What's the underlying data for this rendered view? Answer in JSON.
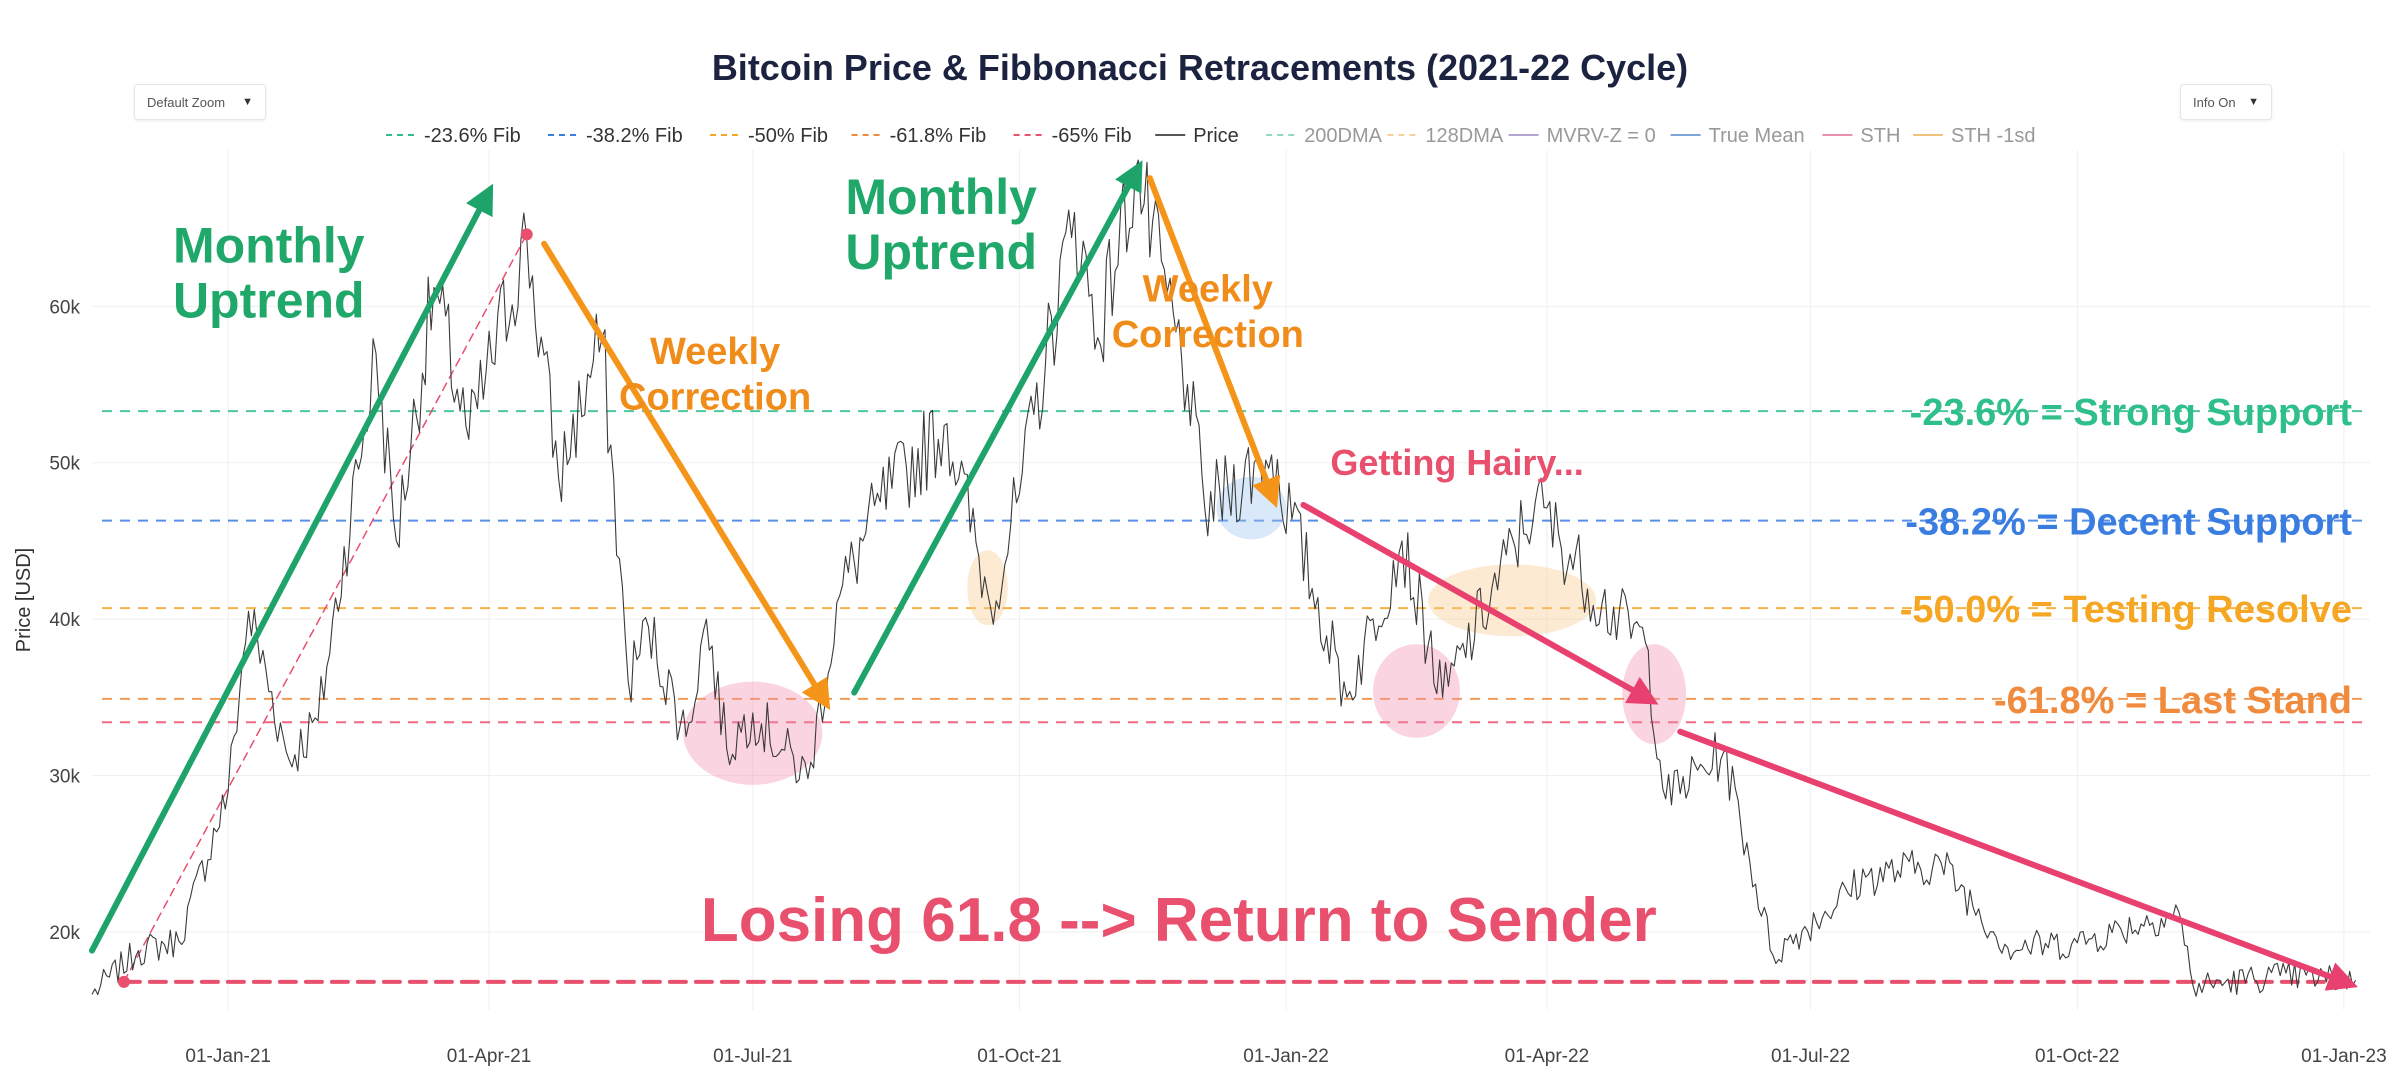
{
  "controls": {
    "zoom_label": "Default Zoom",
    "info_label": "Info On",
    "caret": "▼"
  },
  "chart_data": {
    "type": "line",
    "title": "Bitcoin Price & Fibbonacci Retracements (2021-22 Cycle)",
    "ylabel": "Price [USD]",
    "xlabel": "",
    "ylim": [
      15000,
      70000
    ],
    "xlim": [
      "2020-11-15",
      "2023-01-10"
    ],
    "x_ticks": [
      {
        "date": "2021-01-01",
        "label": "01-Jan-21"
      },
      {
        "date": "2021-04-01",
        "label": "01-Apr-21"
      },
      {
        "date": "2021-07-01",
        "label": "01-Jul-21"
      },
      {
        "date": "2021-10-01",
        "label": "01-Oct-21"
      },
      {
        "date": "2022-01-01",
        "label": "01-Jan-22"
      },
      {
        "date": "2022-04-01",
        "label": "01-Apr-22"
      },
      {
        "date": "2022-07-01",
        "label": "01-Jul-22"
      },
      {
        "date": "2022-10-01",
        "label": "01-Oct-22"
      },
      {
        "date": "2023-01-01",
        "label": "01-Jan-23"
      }
    ],
    "y_ticks": [
      {
        "value": 20000,
        "label": "20k"
      },
      {
        "value": 30000,
        "label": "30k"
      },
      {
        "value": 40000,
        "label": "40k"
      },
      {
        "value": 50000,
        "label": "50k"
      },
      {
        "value": 60000,
        "label": "60k"
      }
    ],
    "legend": [
      {
        "name": "-23.6% Fib",
        "color": "#2fbf8a",
        "dash": true
      },
      {
        "name": "-38.2% Fib",
        "color": "#3a7de0",
        "dash": true
      },
      {
        "name": "-50% Fib",
        "color": "#f5a623",
        "dash": true
      },
      {
        "name": "-61.8% Fib",
        "color": "#f08a3c",
        "dash": true
      },
      {
        "name": "-65% Fib",
        "color": "#e8506e",
        "dash": true
      },
      {
        "name": "Price",
        "color": "#555555",
        "dash": false
      },
      {
        "name": "200DMA",
        "color": "#8fd9c4",
        "dash": true
      },
      {
        "name": "128DMA",
        "color": "#f6cf9a",
        "dash": true
      },
      {
        "name": "MVRV-Z = 0",
        "color": "#b3a5cf",
        "dash": false
      },
      {
        "name": "True Mean",
        "color": "#7fa6d8",
        "dash": false
      },
      {
        "name": "STH",
        "color": "#ea8fb0",
        "dash": false
      },
      {
        "name": "STH -1sd",
        "color": "#f2c27a",
        "dash": false
      }
    ],
    "fib_levels": [
      {
        "name": "-23.6% Fib",
        "value": 53300,
        "color": "#2fbf8a",
        "label": "-23.6% = Strong Support"
      },
      {
        "name": "-38.2% Fib",
        "value": 46300,
        "color": "#3a7de0",
        "label": "-38.2% = Decent Support"
      },
      {
        "name": "-50% Fib",
        "value": 40700,
        "color": "#f5a623",
        "label": "-50.0% = Testing Resolve"
      },
      {
        "name": "-61.8% Fib",
        "value": 34900,
        "color": "#f08a3c",
        "label": "-61.8% = Last Stand"
      },
      {
        "name": "-65% Fib",
        "value": 33400,
        "color": "#e8506e",
        "label": ""
      }
    ],
    "price_series": {
      "name": "Price",
      "points": [
        [
          "2020-11-15",
          16000
        ],
        [
          "2020-12-01",
          18800
        ],
        [
          "2020-12-15",
          19400
        ],
        [
          "2021-01-01",
          29000
        ],
        [
          "2021-01-08",
          40500
        ],
        [
          "2021-01-22",
          31000
        ],
        [
          "2021-02-01",
          33500
        ],
        [
          "2021-02-21",
          57000
        ],
        [
          "2021-02-28",
          45000
        ],
        [
          "2021-03-13",
          61200
        ],
        [
          "2021-03-25",
          51500
        ],
        [
          "2021-04-14",
          64400
        ],
        [
          "2021-04-25",
          49000
        ],
        [
          "2021-05-10",
          58000
        ],
        [
          "2021-05-19",
          36000
        ],
        [
          "2021-05-26",
          39500
        ],
        [
          "2021-06-08",
          32500
        ],
        [
          "2021-06-15",
          40000
        ],
        [
          "2021-06-22",
          31700
        ],
        [
          "2021-07-01",
          34000
        ],
        [
          "2021-07-20",
          29800
        ],
        [
          "2021-07-31",
          41500
        ],
        [
          "2021-08-14",
          47500
        ],
        [
          "2021-09-06",
          52500
        ],
        [
          "2021-09-21",
          40800
        ],
        [
          "2021-10-01",
          48000
        ],
        [
          "2021-10-20",
          66000
        ],
        [
          "2021-10-28",
          58000
        ],
        [
          "2021-11-10",
          68800
        ],
        [
          "2021-11-28",
          55000
        ],
        [
          "2021-12-04",
          47000
        ],
        [
          "2021-12-27",
          50500
        ],
        [
          "2022-01-22",
          35000
        ],
        [
          "2022-02-10",
          45000
        ],
        [
          "2022-02-24",
          35000
        ],
        [
          "2022-03-28",
          47500
        ],
        [
          "2022-04-20",
          41000
        ],
        [
          "2022-05-05",
          38500
        ],
        [
          "2022-05-12",
          28500
        ],
        [
          "2022-06-01",
          31500
        ],
        [
          "2022-06-18",
          18500
        ],
        [
          "2022-07-20",
          23500
        ],
        [
          "2022-08-15",
          24400
        ],
        [
          "2022-09-07",
          19000
        ],
        [
          "2022-10-01",
          19300
        ],
        [
          "2022-11-05",
          21300
        ],
        [
          "2022-11-10",
          16500
        ],
        [
          "2022-12-10",
          17200
        ],
        [
          "2023-01-05",
          16900
        ]
      ]
    },
    "markers": [
      {
        "date": "2020-11-26",
        "value": 16800,
        "color": "#e8506e"
      },
      {
        "date": "2021-04-14",
        "value": 64600,
        "color": "#e8506e"
      }
    ],
    "annotations": [
      {
        "text": "Monthly",
        "color": "#20a86a",
        "size": 50,
        "anchor": "middle",
        "date": "2021-01-15",
        "value": 62800
      },
      {
        "text": "Uptrend",
        "color": "#20a86a",
        "size": 50,
        "anchor": "middle",
        "date": "2021-01-15",
        "value": 59300
      },
      {
        "text": "Monthly",
        "color": "#20a86a",
        "size": 50,
        "anchor": "middle",
        "date": "2021-09-04",
        "value": 65900
      },
      {
        "text": "Uptrend",
        "color": "#20a86a",
        "size": 50,
        "anchor": "middle",
        "date": "2021-09-04",
        "value": 62400
      },
      {
        "text": "Weekly",
        "color": "#f08c1a",
        "size": 38,
        "anchor": "middle",
        "date": "2021-06-18",
        "value": 56300
      },
      {
        "text": "Correction",
        "color": "#f08c1a",
        "size": 38,
        "anchor": "middle",
        "date": "2021-06-18",
        "value": 53400
      },
      {
        "text": "Weekly",
        "color": "#f08c1a",
        "size": 38,
        "anchor": "middle",
        "date": "2021-12-05",
        "value": 60300
      },
      {
        "text": "Correction",
        "color": "#f08c1a",
        "size": 38,
        "anchor": "middle",
        "date": "2021-12-05",
        "value": 57400
      },
      {
        "text": "Getting Hairy...",
        "color": "#e8506e",
        "size": 36,
        "anchor": "middle",
        "date": "2022-03-01",
        "value": 49200
      },
      {
        "text": "Losing 61.8 --> Return to Sender",
        "color": "#e8506e",
        "size": 62,
        "anchor": "middle",
        "date": "2021-11-25",
        "value": 19400
      }
    ],
    "trend_arrows": [
      {
        "color": "#1ea36a",
        "from": [
          "2020-11-15",
          18800
        ],
        "to": [
          "2021-03-31",
          67000
        ]
      },
      {
        "color": "#1ea36a",
        "from": [
          "2021-08-05",
          35300
        ],
        "to": [
          "2021-11-10",
          68500
        ]
      },
      {
        "color": "#f49418",
        "from": [
          "2021-04-20",
          64000
        ],
        "to": [
          "2021-07-25",
          35000
        ]
      },
      {
        "color": "#f49418",
        "from": [
          "2021-11-15",
          68200
        ],
        "to": [
          "2021-12-27",
          48000
        ]
      },
      {
        "color": "#e84170",
        "from": [
          "2022-01-07",
          47300
        ],
        "to": [
          "2022-05-05",
          35000
        ]
      },
      {
        "color": "#e84170",
        "from": [
          "2022-05-17",
          32800
        ],
        "to": [
          "2023-01-01",
          16800
        ]
      }
    ],
    "guide_lines": [
      {
        "color": "#e8506e",
        "from": [
          "2020-11-26",
          16800
        ],
        "to": [
          "2021-04-14",
          64600
        ],
        "dash": "8,6",
        "width": 1.5
      },
      {
        "color": "#e8506e",
        "from": [
          "2020-11-26",
          16800
        ],
        "to": [
          "2023-01-01",
          16800
        ],
        "dash": "16,10",
        "width": 4
      }
    ],
    "highlights": [
      {
        "color": "#f48fb1",
        "center": [
          "2021-07-01",
          32700
        ],
        "rx_days": 24,
        "ry_value": 3300
      },
      {
        "color": "#f8c98a",
        "center": [
          "2021-09-20",
          42000
        ],
        "rx_days": 7,
        "ry_value": 2400
      },
      {
        "color": "#9cc4ee",
        "center": [
          "2021-12-20",
          47100
        ],
        "rx_days": 12,
        "ry_value": 2000
      },
      {
        "color": "#f48fb1",
        "center": [
          "2022-02-15",
          35400
        ],
        "rx_days": 15,
        "ry_value": 3000
      },
      {
        "color": "#f8c98a",
        "center": [
          "2022-03-20",
          41200
        ],
        "rx_days": 29,
        "ry_value": 2300
      },
      {
        "color": "#f48fb1",
        "center": [
          "2022-05-08",
          35200
        ],
        "rx_days": 11,
        "ry_value": 3200
      }
    ]
  }
}
